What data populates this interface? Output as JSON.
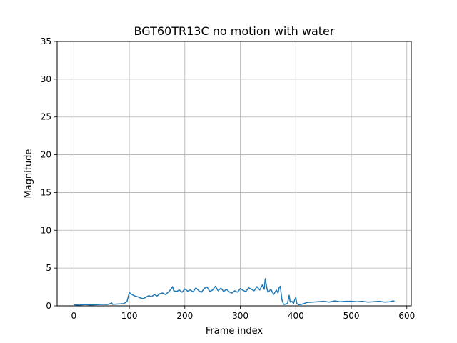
{
  "chart_data": {
    "type": "line",
    "title": "BGT60TR13C no motion with water",
    "xlabel": "Frame index",
    "ylabel": "Magnitude",
    "xlim": [
      -30,
      608
    ],
    "ylim": [
      0,
      35
    ],
    "xticks": [
      0,
      100,
      200,
      300,
      400,
      500,
      600
    ],
    "xtick_labels": [
      "0",
      "100",
      "200",
      "300",
      "400",
      "500",
      "600"
    ],
    "yticks": [
      0,
      5,
      10,
      15,
      20,
      25,
      30,
      35
    ],
    "ytick_labels": [
      "0",
      "5",
      "10",
      "15",
      "20",
      "25",
      "30",
      "35"
    ],
    "grid": true,
    "line_color": "#1f77b4",
    "grid_color": "#b0b0b0",
    "series": [
      {
        "x": [
          0,
          10,
          20,
          30,
          40,
          50,
          60,
          66,
          68,
          70,
          80,
          90,
          96,
          98,
          100,
          103,
          106,
          110,
          115,
          120,
          125,
          130,
          135,
          140,
          145,
          150,
          155,
          160,
          165,
          170,
          175,
          178,
          180,
          185,
          190,
          195,
          200,
          205,
          210,
          215,
          220,
          225,
          230,
          235,
          240,
          245,
          250,
          255,
          260,
          265,
          270,
          275,
          280,
          285,
          290,
          295,
          300,
          305,
          310,
          315,
          320,
          325,
          330,
          335,
          340,
          343,
          345,
          348,
          350,
          355,
          360,
          365,
          368,
          370,
          372,
          375,
          378,
          380,
          385,
          388,
          390,
          393,
          396,
          398,
          400,
          402,
          405,
          410,
          415,
          420,
          430,
          440,
          450,
          460,
          470,
          480,
          490,
          500,
          510,
          520,
          530,
          540,
          550,
          560,
          570,
          575,
          578
        ],
        "y": [
          0.15,
          0.1,
          0.18,
          0.12,
          0.15,
          0.2,
          0.18,
          0.3,
          0.4,
          0.2,
          0.25,
          0.3,
          0.6,
          1.2,
          1.75,
          1.6,
          1.45,
          1.3,
          1.2,
          1.05,
          0.95,
          1.15,
          1.35,
          1.2,
          1.5,
          1.3,
          1.6,
          1.7,
          1.5,
          1.8,
          2.2,
          2.55,
          2.0,
          1.9,
          2.1,
          1.8,
          2.25,
          1.95,
          2.1,
          1.85,
          2.4,
          2.0,
          1.8,
          2.3,
          2.5,
          1.9,
          2.1,
          2.6,
          2.0,
          2.35,
          1.9,
          2.2,
          1.85,
          1.7,
          2.0,
          1.8,
          2.3,
          2.05,
          1.9,
          2.4,
          2.2,
          2.0,
          2.55,
          2.1,
          2.8,
          2.2,
          3.6,
          2.3,
          1.8,
          2.2,
          1.5,
          2.1,
          1.7,
          2.4,
          2.6,
          0.8,
          0.2,
          0.2,
          0.3,
          1.4,
          0.5,
          0.6,
          0.3,
          0.8,
          1.1,
          0.3,
          0.15,
          0.2,
          0.3,
          0.45,
          0.5,
          0.55,
          0.6,
          0.5,
          0.65,
          0.55,
          0.6,
          0.6,
          0.55,
          0.6,
          0.5,
          0.55,
          0.6,
          0.5,
          0.55,
          0.65,
          0.6
        ]
      }
    ]
  }
}
